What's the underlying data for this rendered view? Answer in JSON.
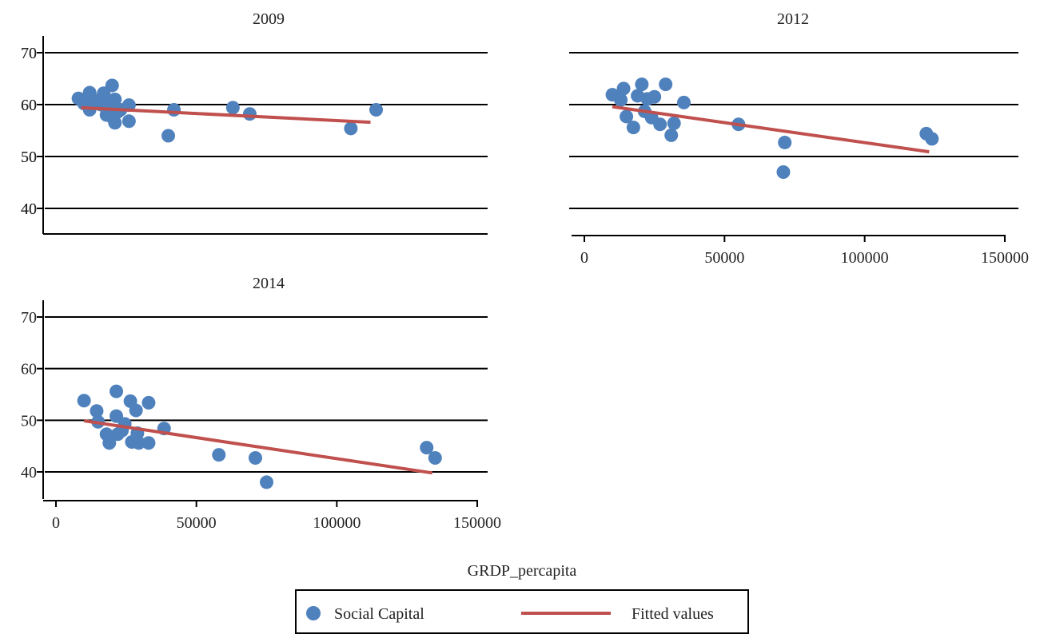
{
  "xlabel": "GRDP_percapita",
  "legend": {
    "placement": "bottom-center",
    "items": [
      {
        "label": "Social Capital",
        "kind": "marker",
        "color": "#4f81bd"
      },
      {
        "label": "Fitted values",
        "kind": "line",
        "color": "#c0504d"
      }
    ]
  },
  "chart_data": [
    {
      "type": "scatter",
      "title": "2009",
      "ylim": [
        35,
        73
      ],
      "xlim": [
        0,
        150000
      ],
      "yticks": [
        40,
        50,
        60,
        70
      ],
      "xticks": [],
      "grid": true,
      "series": [
        {
          "name": "Social Capital",
          "x": [
            8000,
            10000,
            12000,
            12000,
            14000,
            16000,
            17000,
            18000,
            18000,
            19000,
            20000,
            20000,
            21000,
            21000,
            22000,
            23000,
            26000,
            26000,
            40000,
            42000,
            63000,
            69000,
            105000,
            114000
          ],
          "y": [
            61.2,
            60.2,
            62.3,
            59.0,
            60.8,
            60.0,
            62.2,
            58.0,
            61.0,
            60.3,
            63.7,
            57.6,
            61.0,
            56.5,
            58.6,
            59.0,
            59.9,
            56.8,
            54.0,
            59.0,
            59.4,
            58.2,
            55.4,
            59.0
          ]
        },
        {
          "name": "Fitted values",
          "x": [
            9000,
            112000
          ],
          "y": [
            59.4,
            56.6
          ]
        }
      ]
    },
    {
      "type": "scatter",
      "title": "2012",
      "ylim": [
        35,
        73
      ],
      "xlim": [
        0,
        150000
      ],
      "yticks": [
        40,
        50,
        60,
        70
      ],
      "xticks": [
        0,
        50000,
        100000,
        150000
      ],
      "grid": true,
      "series": [
        {
          "name": "Social Capital",
          "x": [
            10000,
            13000,
            14000,
            15000,
            17500,
            19000,
            20500,
            21500,
            22500,
            24000,
            25000,
            27000,
            29000,
            31000,
            32000,
            35500,
            55000,
            71000,
            71500,
            122000,
            124000
          ],
          "y": [
            61.9,
            60.9,
            63.1,
            57.7,
            55.6,
            61.7,
            63.9,
            58.7,
            61.1,
            57.5,
            61.5,
            56.2,
            63.9,
            54.1,
            56.4,
            60.4,
            56.2,
            47.0,
            52.7,
            54.4,
            53.4
          ]
        },
        {
          "name": "Fitted values",
          "x": [
            10000,
            123000
          ],
          "y": [
            59.6,
            50.9
          ]
        }
      ]
    },
    {
      "type": "scatter",
      "title": "2014",
      "ylim": [
        35,
        73
      ],
      "xlim": [
        0,
        150000
      ],
      "yticks": [
        40,
        50,
        60,
        70
      ],
      "xticks": [
        0,
        50000,
        100000,
        150000
      ],
      "grid": true,
      "series": [
        {
          "name": "Social Capital",
          "x": [
            10000,
            14500,
            15000,
            18000,
            19000,
            21500,
            21500,
            22000,
            23500,
            24500,
            26500,
            27000,
            28500,
            29000,
            29500,
            33000,
            33000,
            38500,
            58000,
            71000,
            75000,
            132000,
            135000
          ],
          "y": [
            53.8,
            51.8,
            49.7,
            47.3,
            45.6,
            55.6,
            50.8,
            47.3,
            48.0,
            49.3,
            53.7,
            45.8,
            51.9,
            47.5,
            45.6,
            45.6,
            53.4,
            48.4,
            43.3,
            42.7,
            38.0,
            44.7,
            42.7
          ]
        },
        {
          "name": "Fitted values",
          "x": [
            10000,
            134000
          ],
          "y": [
            49.9,
            39.8
          ]
        }
      ]
    }
  ]
}
